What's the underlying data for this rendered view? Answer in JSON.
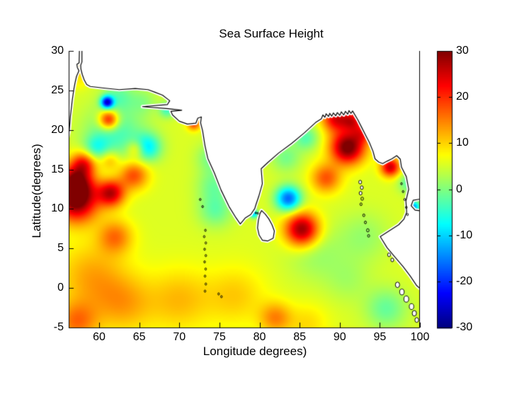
{
  "figure": {
    "background": "#ffffff",
    "axis_color": "#000000",
    "land_color": "#ffffff",
    "coast_color": "#000000"
  },
  "chart_data": {
    "type": "heatmap",
    "title": "Sea Surface Height",
    "xlabel": "Longitude degrees)",
    "ylabel": "Latitude(degrees)",
    "xlim": [
      56.2,
      100
    ],
    "ylim": [
      -5,
      30
    ],
    "xticks": [
      60,
      65,
      70,
      75,
      80,
      85,
      90,
      95,
      100
    ],
    "yticks": [
      30,
      25,
      20,
      15,
      10,
      5,
      0,
      -5
    ],
    "colormap": "jet",
    "clim": [
      -30,
      30
    ],
    "colorbar_ticks": [
      30,
      20,
      10,
      0,
      -10,
      -20,
      -30
    ],
    "grid": false,
    "legend_position": "colorbar-right",
    "base_value": 5.5,
    "anomalies": [
      [
        57.4,
        27.7,
        8,
        0.5
      ],
      [
        57.6,
        26.3,
        3,
        0.8
      ],
      [
        61.0,
        23.5,
        -27,
        0.55
      ],
      [
        61.2,
        21.3,
        20,
        0.85
      ],
      [
        62.5,
        24.3,
        -6,
        1.3
      ],
      [
        65.5,
        23.6,
        -4,
        1.2
      ],
      [
        68.5,
        22.55,
        -9,
        0.7
      ],
      [
        71.8,
        20.8,
        13,
        0.6
      ],
      [
        62.0,
        19.5,
        -9,
        2.6
      ],
      [
        66.0,
        17.8,
        -13,
        1.2
      ],
      [
        59.6,
        17.7,
        -8,
        1.1
      ],
      [
        58.1,
        15.8,
        15,
        1.1
      ],
      [
        61.3,
        16.2,
        8,
        0.9
      ],
      [
        64.6,
        17.6,
        9,
        0.8
      ],
      [
        57.0,
        13.4,
        20,
        1.5
      ],
      [
        57.2,
        11.0,
        24,
        1.9
      ],
      [
        61.5,
        12.0,
        20,
        1.2
      ],
      [
        64.3,
        14.3,
        13,
        1.3
      ],
      [
        62.0,
        6.5,
        10,
        1.5
      ],
      [
        74.0,
        16.5,
        -6,
        1.3
      ],
      [
        74.3,
        13.0,
        -6,
        1.5
      ],
      [
        74.5,
        9.8,
        -7,
        1.5
      ],
      [
        79.3,
        9.4,
        -15,
        0.4
      ],
      [
        83.6,
        11.3,
        -22,
        1.1
      ],
      [
        85.3,
        7.4,
        24,
        1.5
      ],
      [
        85.8,
        19.0,
        -8,
        1.1
      ],
      [
        83.3,
        16.5,
        -6,
        1.3
      ],
      [
        91.0,
        17.8,
        26,
        1.5
      ],
      [
        89.5,
        21.5,
        18,
        1.2
      ],
      [
        91.6,
        21.2,
        14,
        0.9
      ],
      [
        92.9,
        19.6,
        10,
        0.9
      ],
      [
        88.3,
        13.9,
        12,
        1.3
      ],
      [
        96.3,
        15.3,
        20,
        0.85
      ],
      [
        98.6,
        13.3,
        -8,
        0.9
      ],
      [
        99.3,
        10.3,
        -18,
        0.5
      ],
      [
        87.0,
        4.5,
        -4,
        2.5
      ],
      [
        93.0,
        6.5,
        -4,
        2.2
      ],
      [
        95.8,
        -2.6,
        -7,
        1.8
      ],
      [
        91.0,
        1.0,
        -3,
        2.0
      ],
      [
        59.0,
        1.5,
        7,
        3.0
      ],
      [
        57.2,
        -4.3,
        10,
        1.8
      ],
      [
        63.0,
        -2.0,
        7,
        2.6
      ],
      [
        70.0,
        -1.5,
        6,
        2.8
      ],
      [
        77.0,
        -1.0,
        5,
        2.6
      ],
      [
        82.0,
        -3.8,
        9,
        1.4
      ],
      [
        86.0,
        -4.5,
        4,
        1.8
      ]
    ],
    "land": {
      "mainland": [
        [
          57.85,
          30.6
        ],
        [
          100.6,
          30.6
        ],
        [
          100.6,
          11.35
        ],
        [
          99.15,
          11.1
        ],
        [
          98.9,
          10.4
        ],
        [
          99.4,
          9.85
        ],
        [
          100.6,
          9.7
        ],
        [
          100.6,
          -0.6
        ],
        [
          99.6,
          0.3
        ],
        [
          98.8,
          1.5
        ],
        [
          97.9,
          2.7
        ],
        [
          96.9,
          3.9
        ],
        [
          95.9,
          5.1
        ],
        [
          95.05,
          6.5
        ],
        [
          97.35,
          8.0
        ],
        [
          98.0,
          8.7
        ],
        [
          98.35,
          9.6
        ],
        [
          98.25,
          11.0
        ],
        [
          98.6,
          12.5
        ],
        [
          98.3,
          14.1
        ],
        [
          97.7,
          15.3
        ],
        [
          97.55,
          16.3
        ],
        [
          97.1,
          16.75
        ],
        [
          96.5,
          16.35
        ],
        [
          95.9,
          16.05
        ],
        [
          95.35,
          15.75
        ],
        [
          94.85,
          15.95
        ],
        [
          94.4,
          16.35
        ],
        [
          94.15,
          17.3
        ],
        [
          93.7,
          18.4
        ],
        [
          93.2,
          19.4
        ],
        [
          92.75,
          20.3
        ],
        [
          92.25,
          21.3
        ],
        [
          91.6,
          22.4
        ],
        [
          91.4,
          22.1
        ],
        [
          91.15,
          22.45
        ],
        [
          91.0,
          22.0
        ],
        [
          90.7,
          22.35
        ],
        [
          90.5,
          21.9
        ],
        [
          90.2,
          22.3
        ],
        [
          90.0,
          21.85
        ],
        [
          89.7,
          22.2
        ],
        [
          89.5,
          21.8
        ],
        [
          89.2,
          22.15
        ],
        [
          89.0,
          21.75
        ],
        [
          88.75,
          22.1
        ],
        [
          88.6,
          21.7
        ],
        [
          88.3,
          22.05
        ],
        [
          88.15,
          21.6
        ],
        [
          87.9,
          21.9
        ],
        [
          87.7,
          21.4
        ],
        [
          87.0,
          20.95
        ],
        [
          85.6,
          19.65
        ],
        [
          84.0,
          18.3
        ],
        [
          82.4,
          17.1
        ],
        [
          81.1,
          15.95
        ],
        [
          80.2,
          15.1
        ],
        [
          80.35,
          13.2
        ],
        [
          79.9,
          11.6
        ],
        [
          79.55,
          10.55
        ],
        [
          79.4,
          10.05
        ],
        [
          78.9,
          9.3
        ],
        [
          78.2,
          8.85
        ],
        [
          77.6,
          8.1
        ],
        [
          77.05,
          8.9
        ],
        [
          76.2,
          10.3
        ],
        [
          75.2,
          12.4
        ],
        [
          74.35,
          14.6
        ],
        [
          73.55,
          16.4
        ],
        [
          73.2,
          18.0
        ],
        [
          72.9,
          19.9
        ],
        [
          72.65,
          20.9
        ],
        [
          72.75,
          21.65
        ],
        [
          72.3,
          21.5
        ],
        [
          72.05,
          20.85
        ],
        [
          71.0,
          20.75
        ],
        [
          70.0,
          21.1
        ],
        [
          69.15,
          21.9
        ],
        [
          68.95,
          22.35
        ],
        [
          70.3,
          22.5
        ],
        [
          68.6,
          22.7
        ],
        [
          65.4,
          22.95
        ],
        [
          68.5,
          23.2
        ],
        [
          68.8,
          23.7
        ],
        [
          67.9,
          24.4
        ],
        [
          66.9,
          24.8
        ],
        [
          66.1,
          25.1
        ],
        [
          64.5,
          25.25
        ],
        [
          62.5,
          25.1
        ],
        [
          60.6,
          25.3
        ],
        [
          58.9,
          25.5
        ],
        [
          58.45,
          25.75
        ],
        [
          58.15,
          26.3
        ],
        [
          57.9,
          27.0
        ],
        [
          57.72,
          27.7
        ],
        [
          57.7,
          28.2
        ],
        [
          57.85,
          28.6
        ]
      ],
      "arabia_wedge": [
        [
          55.9,
          30.6
        ],
        [
          57.55,
          30.6
        ],
        [
          57.5,
          28.5
        ],
        [
          57.22,
          28.3
        ],
        [
          57.28,
          27.9
        ],
        [
          57.48,
          27.5
        ],
        [
          57.18,
          26.8
        ],
        [
          57.0,
          26.0
        ],
        [
          56.85,
          25.2
        ],
        [
          56.65,
          23.8
        ],
        [
          56.42,
          21.8
        ],
        [
          56.27,
          19.9
        ],
        [
          55.9,
          18.2
        ]
      ],
      "sri_lanka": [
        [
          80.25,
          9.8
        ],
        [
          80.7,
          9.35
        ],
        [
          81.15,
          8.75
        ],
        [
          81.55,
          8.0
        ],
        [
          81.85,
          7.2
        ],
        [
          81.7,
          6.3
        ],
        [
          81.0,
          5.95
        ],
        [
          80.35,
          6.05
        ],
        [
          79.95,
          6.7
        ],
        [
          79.75,
          7.6
        ],
        [
          79.85,
          8.55
        ],
        [
          80.05,
          9.4
        ]
      ],
      "islands": [
        [
          92.55,
          13.4,
          2
        ],
        [
          92.75,
          12.7,
          2
        ],
        [
          92.6,
          12.0,
          2
        ],
        [
          92.8,
          11.3,
          1.8
        ],
        [
          92.65,
          10.6,
          1.5
        ],
        [
          93.0,
          9.2,
          1.5
        ],
        [
          93.2,
          8.3,
          1.5
        ],
        [
          93.5,
          7.3,
          1.8
        ],
        [
          93.6,
          6.6,
          1.5
        ],
        [
          97.7,
          13.2,
          1.2
        ],
        [
          97.9,
          12.2,
          1.2
        ],
        [
          98.1,
          11.2,
          1.2
        ],
        [
          98.3,
          10.2,
          1.2
        ],
        [
          98.45,
          9.3,
          1.2
        ],
        [
          97.2,
          0.4,
          3
        ],
        [
          97.75,
          -0.5,
          3.2
        ],
        [
          98.3,
          -1.4,
          3.4
        ],
        [
          98.95,
          -2.35,
          3.2
        ],
        [
          99.3,
          -3.2,
          3
        ],
        [
          99.6,
          -4.05,
          2.6
        ],
        [
          96.15,
          4.2,
          2
        ],
        [
          96.55,
          3.55,
          2
        ],
        [
          73.25,
          7.3,
          1.2
        ],
        [
          73.1,
          6.5,
          1.2
        ],
        [
          73.3,
          5.7,
          1.2
        ],
        [
          73.15,
          4.9,
          1.2
        ],
        [
          73.3,
          4.1,
          1.2
        ],
        [
          73.15,
          3.3,
          1.2
        ],
        [
          73.28,
          2.4,
          1.2
        ],
        [
          73.2,
          1.5,
          1.2
        ],
        [
          73.3,
          0.5,
          1.2
        ],
        [
          73.2,
          -0.4,
          1.2
        ],
        [
          74.9,
          -0.75,
          1.2
        ],
        [
          75.25,
          -1.1,
          1.2
        ],
        [
          72.6,
          11.2,
          1.2
        ],
        [
          72.9,
          10.3,
          1.2
        ],
        [
          79.55,
          9.5,
          1.0
        ],
        [
          79.8,
          9.45,
          1.0
        ]
      ]
    }
  }
}
